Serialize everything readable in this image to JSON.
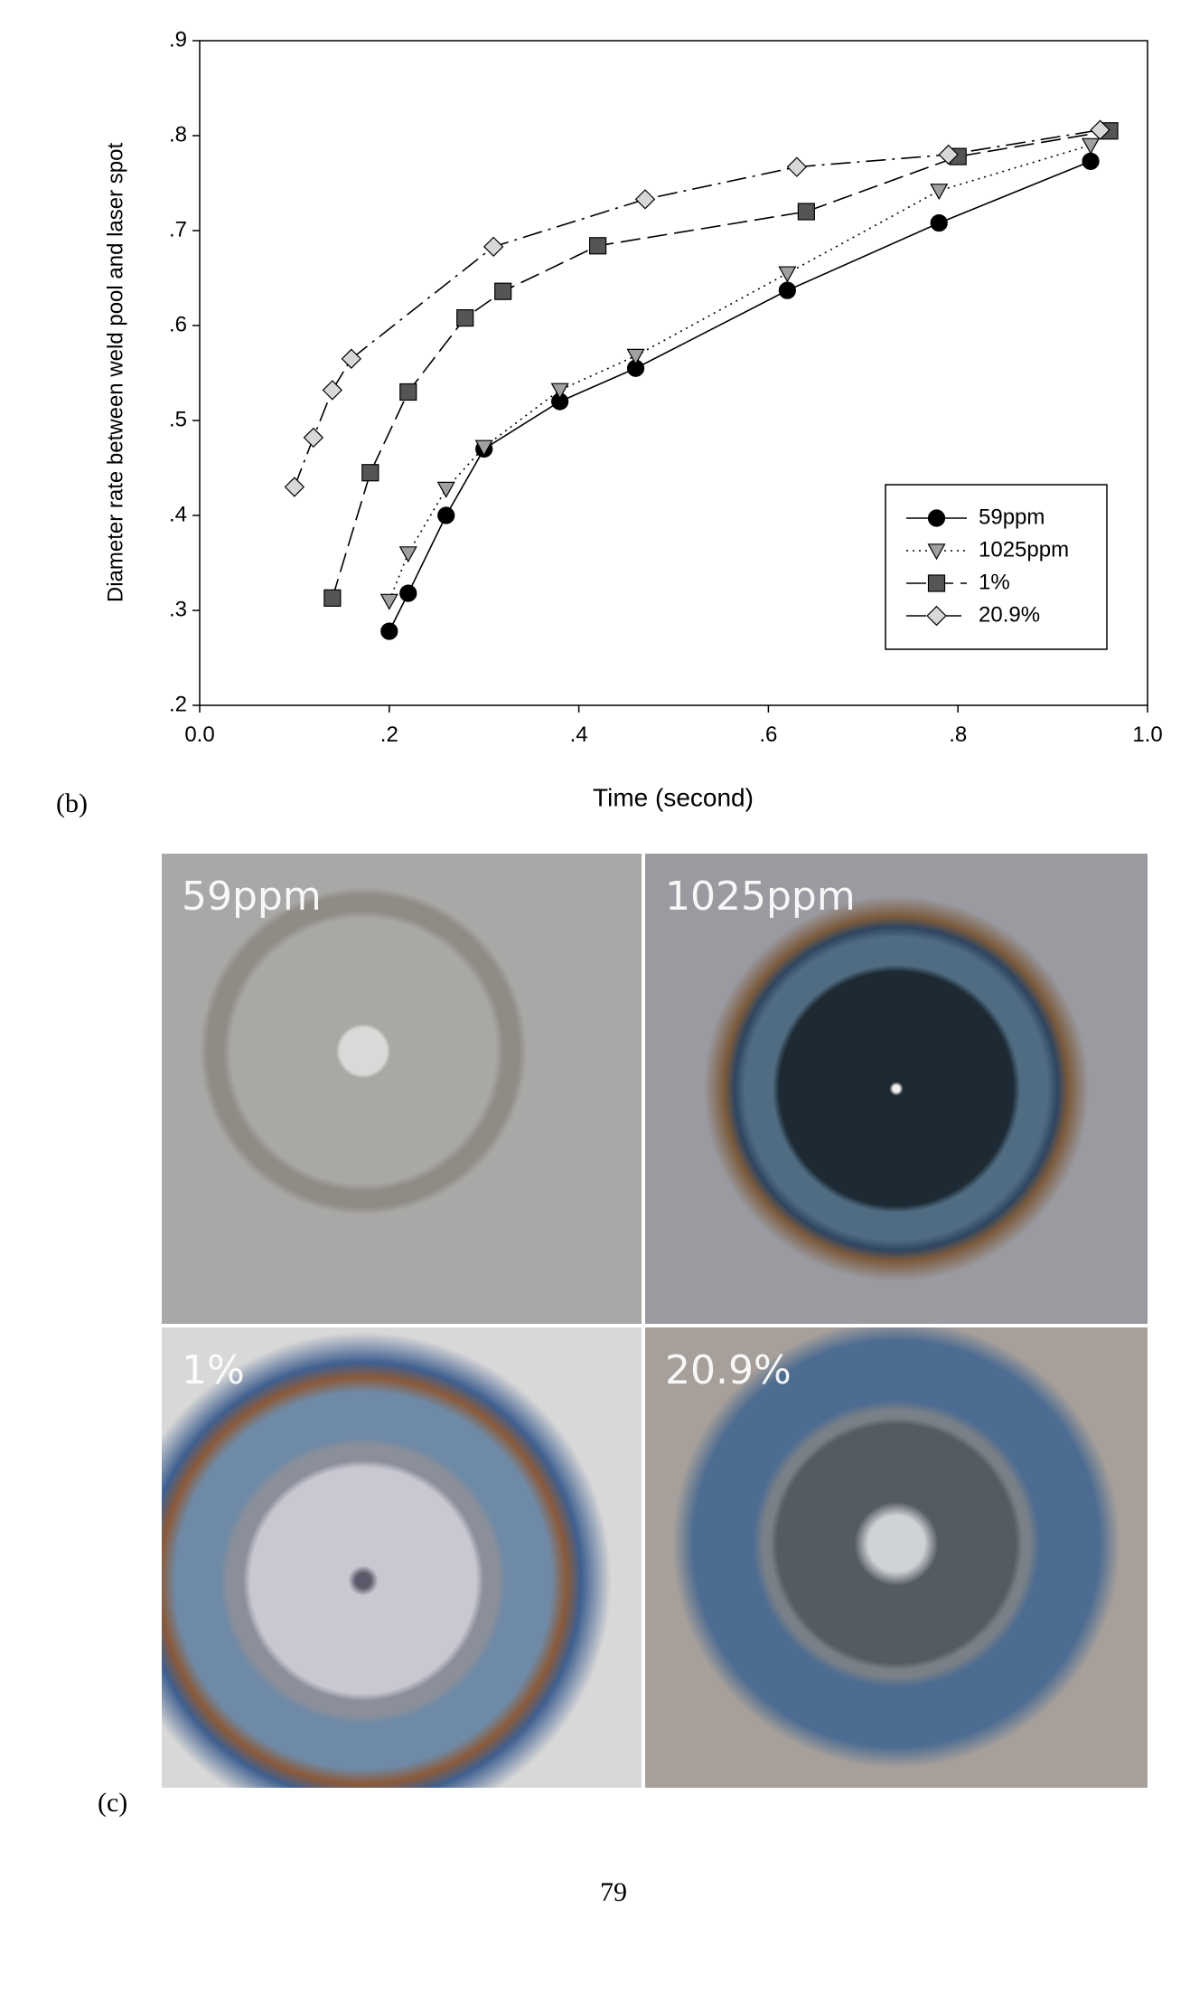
{
  "chart_data": {
    "type": "line",
    "x_label": "Time (second)",
    "y_label": "Diameter rate between weld pool and laser spot",
    "xlim": [
      0,
      1
    ],
    "ylim": [
      0.2,
      0.9
    ],
    "xticks": [
      {
        "value": 0,
        "label": "0.0"
      },
      {
        "value": 0.2,
        "label": ".2"
      },
      {
        "value": 0.4,
        "label": ".4"
      },
      {
        "value": 0.6,
        "label": ".6"
      },
      {
        "value": 0.8,
        "label": ".8"
      },
      {
        "value": 1,
        "label": "1.0"
      }
    ],
    "yticks": [
      {
        "value": 0.2,
        "label": ".2"
      },
      {
        "value": 0.3,
        "label": ".3"
      },
      {
        "value": 0.4,
        "label": ".4"
      },
      {
        "value": 0.5,
        "label": ".5"
      },
      {
        "value": 0.6,
        "label": ".6"
      },
      {
        "value": 0.7,
        "label": ".7"
      },
      {
        "value": 0.8,
        "label": ".8"
      },
      {
        "value": 0.9,
        "label": ".9"
      }
    ],
    "grid": false,
    "legend": "lower-right",
    "series": [
      {
        "name": "59ppm",
        "color": "#000000",
        "marker": "circle",
        "dash": "solid",
        "x": [
          0.2,
          0.22,
          0.26,
          0.3,
          0.38,
          0.46,
          0.62,
          0.78,
          0.94
        ],
        "values": [
          0.278,
          0.318,
          0.4,
          0.47,
          0.52,
          0.555,
          0.637,
          0.708,
          0.773
        ]
      },
      {
        "name": "1025ppm",
        "color": "#a0a0a0",
        "marker": "triangle-down",
        "dash": "dotted",
        "x": [
          0.2,
          0.22,
          0.26,
          0.3,
          0.38,
          0.46,
          0.62,
          0.78,
          0.94
        ],
        "values": [
          0.31,
          0.36,
          0.428,
          0.472,
          0.532,
          0.568,
          0.655,
          0.742,
          0.79
        ]
      },
      {
        "name": "1%",
        "color": "#555555",
        "marker": "square",
        "dash": "dashed",
        "x": [
          0.14,
          0.18,
          0.22,
          0.28,
          0.32,
          0.42,
          0.64,
          0.8,
          0.96
        ],
        "values": [
          0.313,
          0.445,
          0.53,
          0.608,
          0.636,
          0.684,
          0.72,
          0.778,
          0.805
        ]
      },
      {
        "name": "20.9%",
        "color": "#d8d8d8",
        "marker": "diamond",
        "dash": "dashdot",
        "x": [
          0.1,
          0.12,
          0.14,
          0.16,
          0.31,
          0.47,
          0.63,
          0.79,
          0.95
        ],
        "values": [
          0.43,
          0.482,
          0.532,
          0.565,
          0.683,
          0.733,
          0.767,
          0.78,
          0.806
        ]
      }
    ]
  },
  "figure_labels": [
    "(b)",
    "(c)"
  ],
  "photo_labels": [
    "59ppm",
    "1025ppm",
    "1%",
    "20.9%"
  ],
  "page_number": "79"
}
